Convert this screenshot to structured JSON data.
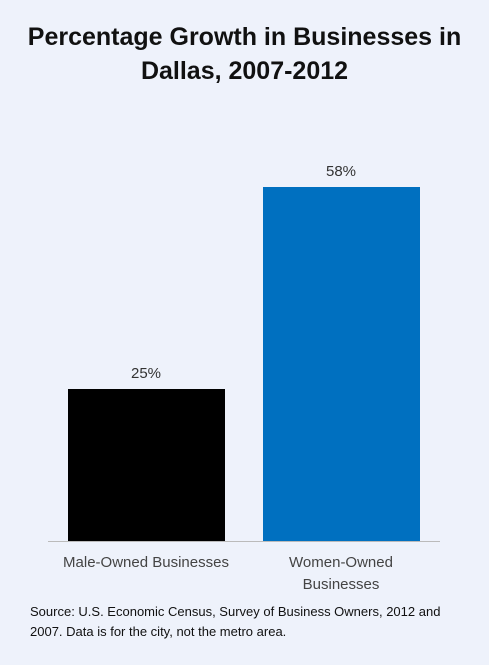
{
  "chart_data": {
    "type": "bar",
    "title": "Percentage Growth in Businesses in Dallas, 2007-2012",
    "categories": [
      "Male-Owned Businesses",
      "Women-Owned Businesses"
    ],
    "values": [
      25,
      58
    ],
    "value_labels": [
      "25%",
      "58%"
    ],
    "colors": [
      "#000000",
      "#0070c0"
    ],
    "source": "Source: U.S. Economic Census, Survey of Business Owners, 2012 and 2007. Data is for the city, not the metro area."
  }
}
